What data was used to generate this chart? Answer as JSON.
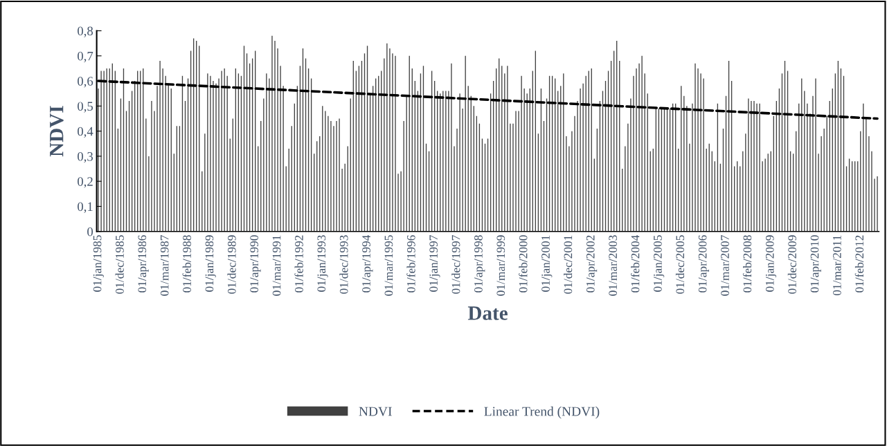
{
  "chart_data": {
    "type": "bar",
    "xlabel": "Date",
    "ylabel": "NDVI",
    "categories": [
      "01/jan/1985",
      null,
      null,
      null,
      null,
      null,
      null,
      null,
      "01/dec/1985",
      null,
      null,
      null,
      null,
      null,
      null,
      null,
      "01/apr/1986",
      null,
      null,
      null,
      null,
      null,
      null,
      null,
      "01/mar/1987",
      null,
      null,
      null,
      null,
      null,
      null,
      null,
      "01/feb/1988",
      null,
      null,
      null,
      null,
      null,
      null,
      null,
      "01/jan/1989",
      null,
      null,
      null,
      null,
      null,
      null,
      null,
      "01/dec/1989",
      null,
      null,
      null,
      null,
      null,
      null,
      null,
      "01/apr/1990",
      null,
      null,
      null,
      null,
      null,
      null,
      null,
      "01/mar/1991",
      null,
      null,
      null,
      null,
      null,
      null,
      null,
      "01/feb/1992",
      null,
      null,
      null,
      null,
      null,
      null,
      null,
      "01/jan/1993",
      null,
      null,
      null,
      null,
      null,
      null,
      null,
      "01/dec/1993",
      null,
      null,
      null,
      null,
      null,
      null,
      null,
      "01/apr/1994",
      null,
      null,
      null,
      null,
      null,
      null,
      null,
      "01/mar/1995",
      null,
      null,
      null,
      null,
      null,
      null,
      null,
      "01/feb/1996",
      null,
      null,
      null,
      null,
      null,
      null,
      null,
      "01/jan/1997",
      null,
      null,
      null,
      null,
      null,
      null,
      null,
      "01/dec/1997",
      null,
      null,
      null,
      null,
      null,
      null,
      null,
      "01/apr/1998",
      null,
      null,
      null,
      null,
      null,
      null,
      null,
      "01/mar/1999",
      null,
      null,
      null,
      null,
      null,
      null,
      null,
      "01/feb/2000",
      null,
      null,
      null,
      null,
      null,
      null,
      null,
      "01/jan/2001",
      null,
      null,
      null,
      null,
      null,
      null,
      null,
      "01/dec/2001",
      null,
      null,
      null,
      null,
      null,
      null,
      null,
      "01/apr/2002",
      null,
      null,
      null,
      null,
      null,
      null,
      null,
      "01/mar/2003",
      null,
      null,
      null,
      null,
      null,
      null,
      null,
      "01/feb/2004",
      null,
      null,
      null,
      null,
      null,
      null,
      null,
      "01/jan/2005",
      null,
      null,
      null,
      null,
      null,
      null,
      null,
      "01/dec/2005",
      null,
      null,
      null,
      null,
      null,
      null,
      null,
      "01/apr/2006",
      null,
      null,
      null,
      null,
      null,
      null,
      null,
      "01/mar/2007",
      null,
      null,
      null,
      null,
      null,
      null,
      null,
      "01/feb/2008",
      null,
      null,
      null,
      null,
      null,
      null,
      null,
      "01/jan/2009",
      null,
      null,
      null,
      null,
      null,
      null,
      null,
      "01/dec/2009",
      null,
      null,
      null,
      null,
      null,
      null,
      null,
      "01/apr/2010",
      null,
      null,
      null,
      null,
      null,
      null,
      null,
      "01/mar/2011",
      null,
      null,
      null,
      null,
      null,
      null,
      null,
      "01/feb/2012",
      null,
      null,
      null,
      null,
      null,
      null
    ],
    "series": [
      {
        "name": "NDVI",
        "color": "#404040",
        "values": [
          0.57,
          0.64,
          0.64,
          0.65,
          0.65,
          0.67,
          0.64,
          0.41,
          0.53,
          0.65,
          0.48,
          0.52,
          0.56,
          0.6,
          0.64,
          0.64,
          0.65,
          0.45,
          0.3,
          0.52,
          0.48,
          0.58,
          0.68,
          0.65,
          0.62,
          0.59,
          0.57,
          0.31,
          0.42,
          0.42,
          0.62,
          0.52,
          0.61,
          0.72,
          0.77,
          0.76,
          0.74,
          0.24,
          0.39,
          0.63,
          0.62,
          0.6,
          0.59,
          0.61,
          0.64,
          0.65,
          0.62,
          0.37,
          0.45,
          0.65,
          0.63,
          0.62,
          0.74,
          0.71,
          0.67,
          0.69,
          0.72,
          0.34,
          0.44,
          0.53,
          0.63,
          0.61,
          0.78,
          0.76,
          0.73,
          0.66,
          0.58,
          0.26,
          0.33,
          0.42,
          0.51,
          0.58,
          0.66,
          0.73,
          0.69,
          0.65,
          0.61,
          0.31,
          0.36,
          0.38,
          0.5,
          0.48,
          0.46,
          0.44,
          0.42,
          0.44,
          0.45,
          0.25,
          0.27,
          0.34,
          0.53,
          0.68,
          0.64,
          0.66,
          0.68,
          0.71,
          0.74,
          0.55,
          0.58,
          0.61,
          0.62,
          0.64,
          0.69,
          0.75,
          0.73,
          0.71,
          0.7,
          0.23,
          0.24,
          0.44,
          0.54,
          0.7,
          0.65,
          0.6,
          0.56,
          0.63,
          0.66,
          0.35,
          0.32,
          0.64,
          0.6,
          0.56,
          0.55,
          0.56,
          0.56,
          0.56,
          0.67,
          0.34,
          0.41,
          0.55,
          0.49,
          0.7,
          0.58,
          0.54,
          0.5,
          0.46,
          0.43,
          0.37,
          0.35,
          0.37,
          0.55,
          0.6,
          0.65,
          0.69,
          0.66,
          0.63,
          0.66,
          0.43,
          0.43,
          0.48,
          0.48,
          0.62,
          0.57,
          0.55,
          0.57,
          0.64,
          0.72,
          0.39,
          0.57,
          0.44,
          0.53,
          0.62,
          0.62,
          0.61,
          0.56,
          0.58,
          0.63,
          0.38,
          0.34,
          0.4,
          0.46,
          0.52,
          0.57,
          0.59,
          0.62,
          0.64,
          0.65,
          0.29,
          0.41,
          0.52,
          0.56,
          0.6,
          0.64,
          0.68,
          0.72,
          0.76,
          0.68,
          0.25,
          0.34,
          0.43,
          0.53,
          0.62,
          0.65,
          0.67,
          0.7,
          0.63,
          0.55,
          0.32,
          0.33,
          0.49,
          0.49,
          0.49,
          0.49,
          0.49,
          0.49,
          0.51,
          0.51,
          0.33,
          0.58,
          0.54,
          0.5,
          0.35,
          0.51,
          0.67,
          0.65,
          0.63,
          0.61,
          0.33,
          0.35,
          0.32,
          0.28,
          0.51,
          0.27,
          0.41,
          0.54,
          0.68,
          0.6,
          0.26,
          0.28,
          0.26,
          0.32,
          0.39,
          0.53,
          0.52,
          0.52,
          0.51,
          0.51,
          0.28,
          0.29,
          0.31,
          0.32,
          0.46,
          0.52,
          0.57,
          0.63,
          0.68,
          0.64,
          0.32,
          0.31,
          0.4,
          0.51,
          0.61,
          0.56,
          0.51,
          0.47,
          0.54,
          0.61,
          0.31,
          0.38,
          0.41,
          0.46,
          0.52,
          0.57,
          0.63,
          0.68,
          0.65,
          0.62,
          0.26,
          0.29,
          0.28,
          0.28,
          0.28,
          0.4,
          0.51,
          0.45,
          0.38,
          0.32,
          0.21,
          0.22
        ]
      },
      {
        "name": "Linear Trend (NDVI)",
        "type": "line",
        "color": "#000000",
        "line_style": "dashed",
        "values": [
          0.6,
          null,
          null,
          null,
          null,
          null,
          null,
          null,
          null,
          null,
          null,
          null,
          null,
          null,
          null,
          null,
          null,
          null,
          null,
          null,
          null,
          null,
          null,
          null,
          null,
          null,
          null,
          null,
          null,
          null,
          null,
          null,
          null,
          null,
          null,
          null,
          null,
          null,
          null,
          null,
          null,
          null,
          null,
          null,
          null,
          null,
          null,
          null,
          null,
          null,
          null,
          null,
          null,
          null,
          null,
          null,
          null,
          null,
          null,
          null,
          null,
          null,
          null,
          null,
          null,
          null,
          null,
          null,
          null,
          null,
          null,
          null,
          null,
          null,
          null,
          null,
          null,
          null,
          null,
          null,
          null,
          null,
          null,
          null,
          null,
          null,
          null,
          null,
          null,
          null,
          null,
          null,
          null,
          null,
          null,
          null,
          null,
          null,
          null,
          null,
          null,
          null,
          null,
          null,
          null,
          null,
          null,
          null,
          null,
          null,
          null,
          null,
          null,
          null,
          null,
          null,
          null,
          null,
          null,
          null,
          null,
          null,
          null,
          null,
          null,
          null,
          null,
          null,
          null,
          null,
          null,
          null,
          null,
          null,
          null,
          null,
          null,
          null,
          null,
          null,
          null,
          null,
          null,
          null,
          null,
          null,
          null,
          null,
          null,
          null,
          null,
          null,
          null,
          null,
          null,
          null,
          null,
          null,
          null,
          null,
          null,
          null,
          null,
          null,
          null,
          null,
          null,
          null,
          null,
          null,
          null,
          null,
          null,
          null,
          null,
          null,
          null,
          null,
          null,
          null,
          null,
          null,
          null,
          null,
          null,
          null,
          null,
          null,
          null,
          null,
          null,
          null,
          null,
          null,
          null,
          null,
          null,
          null,
          null,
          null,
          null,
          null,
          null,
          null,
          null,
          null,
          null,
          null,
          null,
          null,
          null,
          null,
          null,
          null,
          null,
          null,
          null,
          null,
          null,
          null,
          null,
          null,
          null,
          null,
          null,
          null,
          null,
          null,
          null,
          null,
          null,
          null,
          null,
          null,
          null,
          null,
          null,
          null,
          null,
          null,
          null,
          null,
          null,
          null,
          null,
          null,
          null,
          null,
          null,
          null,
          null,
          null,
          null,
          null,
          null,
          null,
          null,
          null,
          null,
          null,
          null,
          null,
          null,
          null,
          null,
          null,
          null,
          null,
          null,
          null,
          null,
          null,
          null,
          null,
          null,
          null,
          null,
          null,
          0.45
        ]
      }
    ],
    "ylim": [
      0,
      0.8
    ],
    "yticks": [
      0,
      {
        "value": 0.1,
        "label": "0,1"
      },
      {
        "value": 0.2,
        "label": "0,2"
      },
      {
        "value": 0.3,
        "label": "0,3"
      },
      {
        "value": 0.4,
        "label": "0,4"
      },
      {
        "value": 0.5,
        "label": "0,5"
      },
      {
        "value": 0.6,
        "label": "0,6"
      },
      {
        "value": 0.7,
        "label": "0,7"
      },
      {
        "value": 0.8,
        "label": "0,8"
      }
    ],
    "grid": false,
    "legend": "bottom"
  }
}
